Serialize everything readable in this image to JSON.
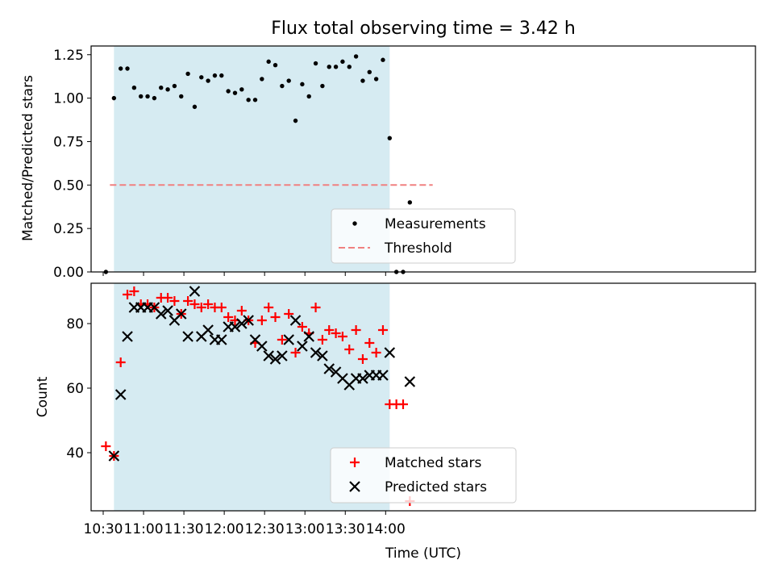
{
  "chart_data": [
    {
      "type": "scatter",
      "title": "Flux total observing time = 3.42 h",
      "xlabel": "",
      "ylabel": "Matched/Predicted stars",
      "xlim_minutes": [
        621,
        1115
      ],
      "ylim": [
        0,
        1.3
      ],
      "yticks": [
        "0.00",
        "0.25",
        "0.50",
        "0.75",
        "1.00",
        "1.25"
      ],
      "shaded_interval": [
        "10:38",
        "14:03"
      ],
      "shade_color": "#add8e6",
      "legend_position": "lower center",
      "threshold": {
        "name": "Threshold",
        "value": 0.5,
        "x_range": [
          "10:35",
          "14:35"
        ],
        "color": "#f08080"
      },
      "series": [
        {
          "name": "Measurements",
          "color": "#000000",
          "marker": "dot",
          "x": [
            "10:32",
            "10:38",
            "10:43",
            "10:48",
            "10:53",
            "10:58",
            "11:03",
            "11:08",
            "11:13",
            "11:18",
            "11:23",
            "11:28",
            "11:33",
            "11:38",
            "11:43",
            "11:48",
            "11:53",
            "11:58",
            "12:03",
            "12:08",
            "12:13",
            "12:18",
            "12:23",
            "12:28",
            "12:33",
            "12:38",
            "12:43",
            "12:48",
            "12:53",
            "12:58",
            "13:03",
            "13:08",
            "13:13",
            "13:18",
            "13:23",
            "13:28",
            "13:33",
            "13:38",
            "13:43",
            "13:48",
            "13:53",
            "13:58",
            "14:03",
            "14:08",
            "14:13",
            "14:18"
          ],
          "y": [
            0.0,
            1.0,
            1.17,
            1.17,
            1.06,
            1.01,
            1.01,
            1.0,
            1.06,
            1.05,
            1.07,
            1.01,
            1.14,
            0.95,
            1.12,
            1.1,
            1.13,
            1.13,
            1.04,
            1.03,
            1.05,
            0.99,
            0.99,
            1.11,
            1.21,
            1.19,
            1.07,
            1.1,
            0.87,
            1.08,
            1.01,
            1.2,
            1.07,
            1.18,
            1.18,
            1.21,
            1.18,
            1.24,
            1.1,
            1.15,
            1.11,
            1.22,
            0.77,
            0.0,
            0.0,
            0.4
          ]
        }
      ]
    },
    {
      "type": "scatter",
      "title": "",
      "xlabel": "Time (UTC)",
      "ylabel": "Count",
      "xlim_minutes": [
        621,
        1115
      ],
      "ylim": [
        22,
        92.5
      ],
      "yticks": [
        "40",
        "60",
        "80"
      ],
      "xticks": [
        "10:30",
        "11:00",
        "11:30",
        "12:00",
        "12:30",
        "13:00",
        "13:30",
        "14:00"
      ],
      "shaded_interval": [
        "10:38",
        "14:03"
      ],
      "shade_color": "#add8e6",
      "legend_position": "lower center",
      "series": [
        {
          "name": "Matched stars",
          "color": "#ff0000",
          "marker": "plus",
          "x": [
            "10:32",
            "10:38",
            "10:43",
            "10:48",
            "10:53",
            "10:58",
            "11:03",
            "11:08",
            "11:13",
            "11:18",
            "11:23",
            "11:28",
            "11:33",
            "11:38",
            "11:43",
            "11:48",
            "11:53",
            "11:58",
            "12:03",
            "12:08",
            "12:13",
            "12:18",
            "12:23",
            "12:28",
            "12:33",
            "12:38",
            "12:43",
            "12:48",
            "12:53",
            "12:58",
            "13:03",
            "13:08",
            "13:13",
            "13:18",
            "13:23",
            "13:28",
            "13:33",
            "13:38",
            "13:43",
            "13:48",
            "13:53",
            "13:58",
            "14:03",
            "14:08",
            "14:13",
            "14:18"
          ],
          "y": [
            42,
            39,
            68,
            89,
            90,
            86,
            86,
            85,
            88,
            88,
            87,
            83,
            87,
            86,
            85,
            86,
            85,
            85,
            82,
            81,
            84,
            81,
            74,
            81,
            85,
            82,
            75,
            83,
            71,
            79,
            77,
            85,
            75,
            78,
            77,
            76,
            72,
            78,
            69,
            74,
            71,
            78,
            55,
            55,
            55,
            25
          ]
        },
        {
          "name": "Predicted stars",
          "color": "#000000",
          "marker": "x",
          "x": [
            "10:38",
            "10:43",
            "10:48",
            "10:53",
            "10:58",
            "11:03",
            "11:08",
            "11:13",
            "11:18",
            "11:23",
            "11:28",
            "11:33",
            "11:38",
            "11:43",
            "11:48",
            "11:53",
            "11:58",
            "12:03",
            "12:08",
            "12:13",
            "12:18",
            "12:23",
            "12:28",
            "12:33",
            "12:38",
            "12:43",
            "12:48",
            "12:53",
            "12:58",
            "13:03",
            "13:08",
            "13:13",
            "13:18",
            "13:23",
            "13:28",
            "13:33",
            "13:38",
            "13:43",
            "13:48",
            "13:53",
            "13:58",
            "14:03",
            "14:18"
          ],
          "y": [
            39,
            58,
            76,
            85,
            85,
            85,
            85,
            83,
            84,
            81,
            83,
            76,
            90,
            76,
            78,
            75,
            75,
            79,
            79,
            80,
            81,
            75,
            73,
            70,
            69,
            70,
            75,
            81,
            73,
            76,
            71,
            70,
            66,
            65,
            63,
            61,
            63,
            63,
            64,
            64,
            64,
            71,
            62
          ]
        }
      ]
    }
  ]
}
